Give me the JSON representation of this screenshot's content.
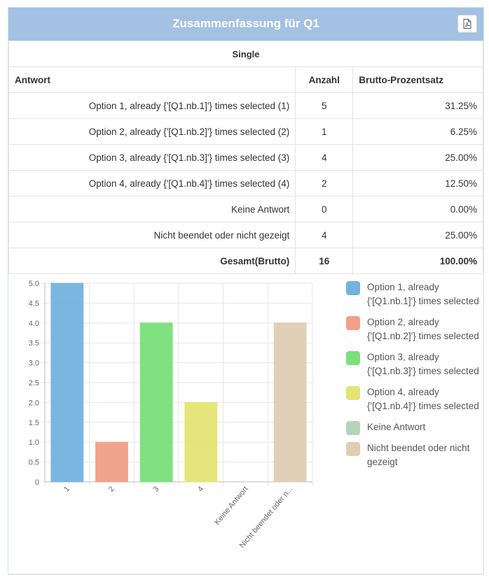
{
  "panel": {
    "title": "Zusammenfassung für Q1",
    "pdf_icon": "file-pdf-icon"
  },
  "table": {
    "question_type": "Single",
    "headers": {
      "answer": "Antwort",
      "count": "Anzahl",
      "percent": "Brutto-Prozentsatz"
    },
    "rows": [
      {
        "answer": "Option 1, already {'[Q1.nb.1]'} times selected (1)",
        "count": "5",
        "percent": "31.25%"
      },
      {
        "answer": "Option 2, already {'[Q1.nb.2]'} times selected (2)",
        "count": "1",
        "percent": "6.25%"
      },
      {
        "answer": "Option 3, already {'[Q1.nb.3]'} times selected (3)",
        "count": "4",
        "percent": "25.00%"
      },
      {
        "answer": "Option 4, already {'[Q1.nb.4]'} times selected (4)",
        "count": "2",
        "percent": "12.50%"
      },
      {
        "answer": "Keine Antwort",
        "count": "0",
        "percent": "0.00%"
      },
      {
        "answer": "Nicht beendet oder nicht gezeigt",
        "count": "4",
        "percent": "25.00%"
      }
    ],
    "total": {
      "label": "Gesamt(Brutto)",
      "count": "16",
      "percent": "100.00%"
    }
  },
  "chart_data": {
    "type": "bar",
    "categories": [
      "1",
      "2",
      "3",
      "4",
      "Keine Antwort",
      "Nicht beendet oder n..."
    ],
    "values": [
      5,
      1,
      4,
      2,
      0,
      4
    ],
    "colors": [
      "#72b3df",
      "#f0a088",
      "#7ae07a",
      "#e4e474",
      "#b6d4b6",
      "#e0cdb4"
    ],
    "ylim": [
      0,
      5
    ],
    "yticks": [
      "0",
      "0.5",
      "1.0",
      "1.5",
      "2.0",
      "2.5",
      "3.0",
      "3.5",
      "4.0",
      "4.5",
      "5.0"
    ],
    "grid": true,
    "legend_position": "right",
    "legend": [
      "Option 1, already {'[Q1.nb.1]'} times selected",
      "Option 2, already {'[Q1.nb.2]'} times selected",
      "Option 3, already {'[Q1.nb.3]'} times selected",
      "Option 4, already {'[Q1.nb.4]'} times selected",
      "Keine Antwort",
      "Nicht beendet oder nicht gezeigt"
    ]
  }
}
